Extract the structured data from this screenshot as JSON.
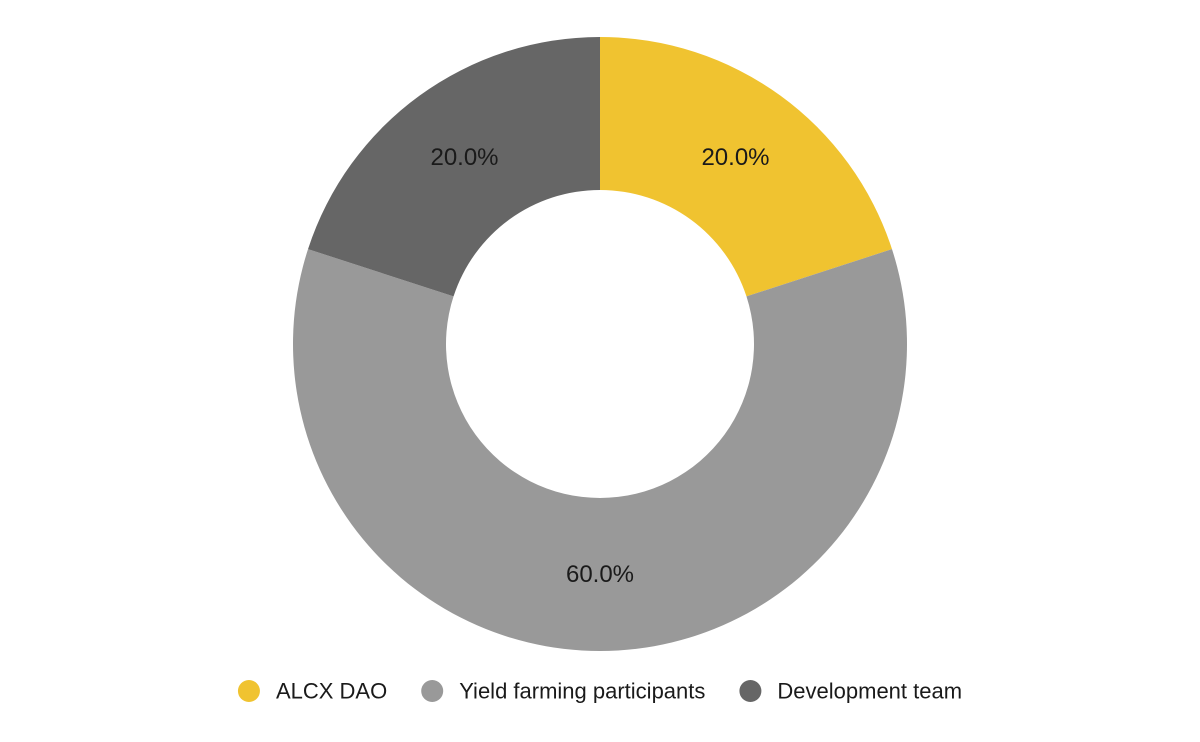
{
  "chart_data": {
    "type": "pie",
    "donut": true,
    "title": "",
    "categories": [
      "ALCX DAO",
      "Yield farming participants",
      "Development team"
    ],
    "values": [
      20.0,
      60.0,
      20.0
    ],
    "value_labels": [
      "20.0%",
      "60.0%",
      "20.0%"
    ],
    "colors": [
      "#f0c330",
      "#999999",
      "#666666"
    ],
    "start_angle_deg": 0,
    "direction": "clockwise",
    "legend": {
      "position": "bottom",
      "entries": [
        "ALCX DAO",
        "Yield farming participants",
        "Development team"
      ]
    }
  }
}
